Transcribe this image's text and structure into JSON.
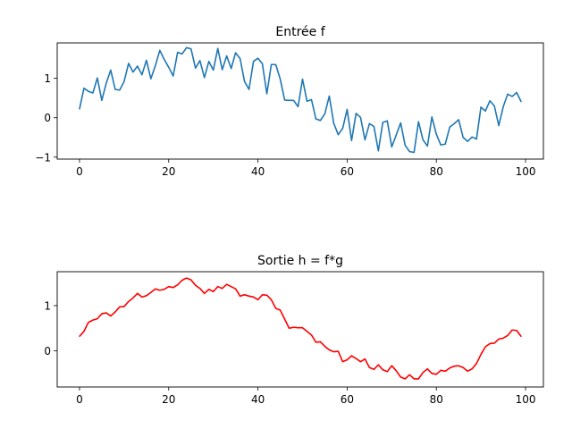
{
  "chart_data": [
    {
      "type": "line",
      "title": "Entrée f",
      "xlabel": "",
      "ylabel": "",
      "xlim": [
        -5,
        104
      ],
      "ylim": [
        -1.05,
        1.9
      ],
      "xticks": [
        0,
        20,
        40,
        60,
        80,
        100
      ],
      "yticks": [
        -1,
        0,
        1
      ],
      "grid": false,
      "color": "#1f77b4",
      "x_start": 0,
      "x_step": 1,
      "values": [
        0.22,
        0.75,
        0.67,
        0.63,
        1.01,
        0.44,
        0.88,
        1.21,
        0.72,
        0.7,
        0.92,
        1.38,
        1.16,
        1.31,
        1.09,
        1.46,
        0.99,
        1.32,
        1.71,
        1.48,
        1.28,
        1.06,
        1.66,
        1.62,
        1.78,
        1.75,
        1.26,
        1.45,
        1.02,
        1.43,
        1.21,
        1.76,
        1.22,
        1.57,
        1.25,
        1.65,
        1.5,
        0.92,
        0.72,
        1.43,
        1.51,
        1.37,
        0.61,
        1.35,
        1.35,
        0.98,
        0.45,
        0.44,
        0.44,
        0.28,
        0.98,
        0.42,
        0.46,
        -0.03,
        -0.07,
        0.1,
        0.55,
        -0.14,
        -0.43,
        -0.27,
        0.21,
        -0.58,
        0.11,
        0.01,
        -0.56,
        -0.15,
        -0.22,
        -0.84,
        -0.12,
        -0.08,
        -0.74,
        -0.44,
        -0.13,
        -0.7,
        -0.86,
        -0.88,
        -0.1,
        -0.56,
        -0.72,
        0.02,
        -0.42,
        -0.69,
        -0.67,
        -0.24,
        -0.15,
        -0.05,
        -0.5,
        -0.6,
        -0.49,
        -0.54,
        0.27,
        0.17,
        0.43,
        0.3,
        -0.2,
        0.28,
        0.6,
        0.54,
        0.64,
        0.41
      ]
    },
    {
      "type": "line",
      "title": "Sortie h = f*g",
      "xlabel": "",
      "ylabel": "",
      "xlim": [
        -5,
        104
      ],
      "ylim": [
        -0.8,
        1.75
      ],
      "xticks": [
        0,
        20,
        40,
        60,
        80,
        100
      ],
      "yticks": [
        0,
        1
      ],
      "grid": false,
      "color": "#ff0000",
      "x_start": 0,
      "x_step": 1,
      "values": [
        0.32,
        0.43,
        0.63,
        0.68,
        0.71,
        0.82,
        0.84,
        0.77,
        0.86,
        0.97,
        0.98,
        1.09,
        1.17,
        1.27,
        1.19,
        1.22,
        1.29,
        1.37,
        1.34,
        1.36,
        1.42,
        1.4,
        1.46,
        1.56,
        1.61,
        1.57,
        1.45,
        1.38,
        1.27,
        1.36,
        1.31,
        1.42,
        1.38,
        1.47,
        1.42,
        1.37,
        1.21,
        1.24,
        1.21,
        1.19,
        1.13,
        1.24,
        1.23,
        1.13,
        0.94,
        0.9,
        0.7,
        0.5,
        0.52,
        0.51,
        0.51,
        0.43,
        0.35,
        0.19,
        0.2,
        0.1,
        0.02,
        -0.02,
        -0.01,
        -0.24,
        -0.2,
        -0.11,
        -0.17,
        -0.24,
        -0.18,
        -0.37,
        -0.41,
        -0.31,
        -0.42,
        -0.46,
        -0.33,
        -0.44,
        -0.58,
        -0.62,
        -0.53,
        -0.62,
        -0.62,
        -0.48,
        -0.4,
        -0.5,
        -0.52,
        -0.43,
        -0.45,
        -0.38,
        -0.34,
        -0.33,
        -0.37,
        -0.45,
        -0.4,
        -0.28,
        -0.08,
        0.09,
        0.16,
        0.17,
        0.26,
        0.28,
        0.34,
        0.46,
        0.45,
        0.32
      ]
    }
  ]
}
